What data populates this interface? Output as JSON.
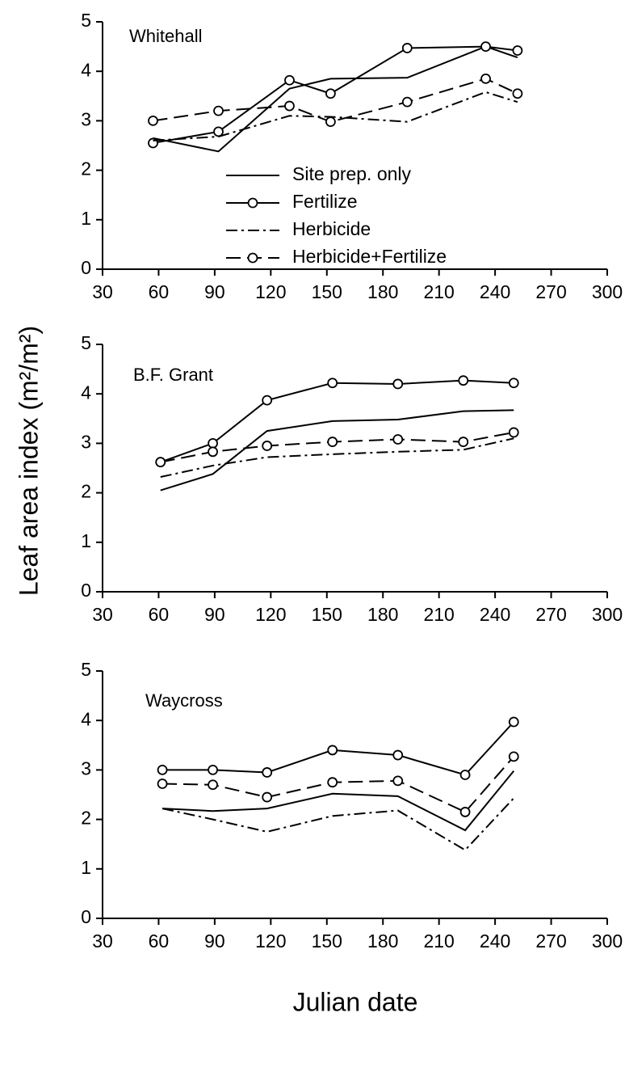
{
  "figure": {
    "ylabel": "Leaf area index (m²/m²)",
    "xlabel": "Julian date"
  },
  "chart_data": [
    {
      "type": "line",
      "title": "Whitehall",
      "legend": true,
      "x": [
        57,
        92,
        130,
        152,
        193,
        235,
        252
      ],
      "xlim": [
        30,
        300
      ],
      "xticks": [
        30,
        60,
        90,
        120,
        150,
        180,
        210,
        240,
        270,
        300
      ],
      "ylim": [
        0,
        5
      ],
      "yticks": [
        0,
        1,
        2,
        3,
        4,
        5
      ],
      "series": [
        {
          "name": "Site prep. only",
          "color": "#000000",
          "dash": "solid",
          "marker": "none",
          "values": [
            2.65,
            2.38,
            3.65,
            3.85,
            3.87,
            4.5,
            4.28
          ]
        },
        {
          "name": "Fertilize",
          "color": "#000000",
          "dash": "solid",
          "marker": "circle",
          "values": [
            2.55,
            2.78,
            3.82,
            3.55,
            4.47,
            4.5,
            4.42
          ]
        },
        {
          "name": "Herbicide",
          "color": "#000000",
          "dash": "dashdot",
          "marker": "none",
          "values": [
            2.6,
            2.68,
            3.1,
            3.08,
            2.98,
            3.58,
            3.38
          ]
        },
        {
          "name": "Herbicide+Fertilize",
          "color": "#000000",
          "dash": "dashed",
          "marker": "circle",
          "values": [
            3.0,
            3.2,
            3.3,
            2.98,
            3.38,
            3.85,
            3.55
          ]
        }
      ]
    },
    {
      "type": "line",
      "title": "B.F. Grant",
      "legend": false,
      "x": [
        61,
        89,
        118,
        153,
        188,
        223,
        250
      ],
      "xlim": [
        30,
        300
      ],
      "xticks": [
        30,
        60,
        90,
        120,
        150,
        180,
        210,
        240,
        270,
        300
      ],
      "ylim": [
        0,
        5
      ],
      "yticks": [
        0,
        1,
        2,
        3,
        4,
        5
      ],
      "series": [
        {
          "color": "#000000",
          "dash": "solid",
          "marker": "none",
          "values": [
            2.05,
            2.38,
            3.25,
            3.45,
            3.48,
            3.65,
            3.67
          ]
        },
        {
          "color": "#000000",
          "dash": "solid",
          "marker": "circle",
          "values": [
            2.62,
            3.0,
            3.87,
            4.22,
            4.2,
            4.27,
            4.22
          ]
        },
        {
          "color": "#000000",
          "dash": "dashdot",
          "marker": "none",
          "values": [
            2.32,
            2.55,
            2.72,
            2.78,
            2.83,
            2.87,
            3.1
          ]
        },
        {
          "color": "#000000",
          "dash": "dashed",
          "marker": "circle",
          "values": [
            2.62,
            2.83,
            2.95,
            3.03,
            3.08,
            3.03,
            3.22
          ]
        }
      ]
    },
    {
      "type": "line",
      "title": "Waycross",
      "legend": false,
      "x": [
        62,
        89,
        118,
        153,
        188,
        224,
        250
      ],
      "xlim": [
        30,
        300
      ],
      "xticks": [
        30,
        60,
        90,
        120,
        150,
        180,
        210,
        240,
        270,
        300
      ],
      "ylim": [
        0,
        5
      ],
      "yticks": [
        0,
        1,
        2,
        3,
        4,
        5
      ],
      "series": [
        {
          "color": "#000000",
          "dash": "solid",
          "marker": "none",
          "values": [
            2.22,
            2.17,
            2.22,
            2.52,
            2.47,
            1.78,
            2.98
          ]
        },
        {
          "color": "#000000",
          "dash": "solid",
          "marker": "circle",
          "values": [
            3.0,
            3.0,
            2.95,
            3.4,
            3.3,
            2.9,
            3.97
          ]
        },
        {
          "color": "#000000",
          "dash": "dashdot",
          "marker": "none",
          "values": [
            2.22,
            2.0,
            1.75,
            2.07,
            2.18,
            1.38,
            2.43
          ]
        },
        {
          "color": "#000000",
          "dash": "dashed",
          "marker": "circle",
          "values": [
            2.72,
            2.7,
            2.45,
            2.75,
            2.78,
            2.15,
            3.27
          ]
        }
      ]
    }
  ]
}
